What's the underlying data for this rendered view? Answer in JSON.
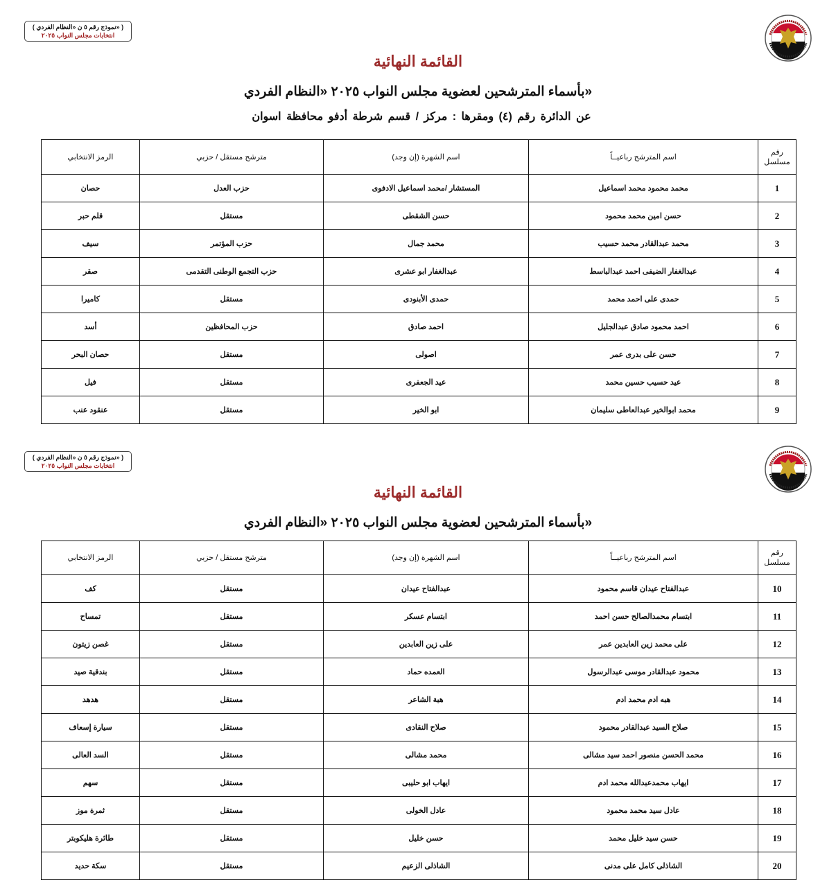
{
  "colors": {
    "title": "#9b2a2a",
    "badge_line2": "#a02020"
  },
  "logo": {
    "icon": "egypt-national-election-authority-seal",
    "text": "National Election Authority Egypt"
  },
  "badge": {
    "line1": "( نموذج رقم ٥ ن «النظام الفردي» )",
    "line2": "انتخابات مجلس النواب ٢٠٢٥"
  },
  "title": "القائمة النهائية",
  "subtitle": "بأسماء المترشحين لعضوية مجلس النواب ٢٠٢٥ «النظام الفردي»",
  "district_line": "عن الدائرة رقم (٤) ومقرها : مركز / قسم شرطة أدفو محافظة اسوان",
  "table": {
    "headers": {
      "serial": "رقم مسلسل",
      "name": "اسم المترشح رباعيــاً",
      "nickname": "اسم الشهرة (إن وجد)",
      "type": "مترشح مستقل / حزبي",
      "symbol": "الرمز الانتخابي"
    },
    "page1_rows": [
      [
        "1",
        "محمد محمود محمد اسماعيل",
        "المستشار /محمد اسماعيل الادفوى",
        "حزب العدل",
        "حصان"
      ],
      [
        "2",
        "حسن امين محمد محمود",
        "حسن الشقطى",
        "مستقل",
        "قلم حبر"
      ],
      [
        "3",
        "محمد عبدالقادر محمد حسيب",
        "محمد جمال",
        "حزب المؤتمر",
        "سيف"
      ],
      [
        "4",
        "عبدالغفار الضيفى احمد عبدالباسط",
        "عبدالغفار ابو عشرى",
        "حزب التجمع الوطنى التقدمى",
        "صقر"
      ],
      [
        "5",
        "حمدى على احمد محمد",
        "حمدى الأبنودى",
        "مستقل",
        "كاميرا"
      ],
      [
        "6",
        "احمد محمود صادق عبدالجليل",
        "احمد صادق",
        "حزب المحافظين",
        "أسد"
      ],
      [
        "7",
        "حسن على بدرى عمر",
        "اصولى",
        "مستقل",
        "حصان البحر"
      ],
      [
        "8",
        "عيد حسيب حسين محمد",
        "عيد الجعفرى",
        "مستقل",
        "فيل"
      ],
      [
        "9",
        "محمد ابوالخير عبدالعاطى سليمان",
        "ابو الخير",
        "مستقل",
        "عنقود عنب"
      ]
    ],
    "page2_rows": [
      [
        "10",
        "عبدالفتاح عيدان قاسم محمود",
        "عبدالفتاح عيدان",
        "مستقل",
        "كف"
      ],
      [
        "11",
        "ابتسام محمدالصالح حسن احمد",
        "ابتسام عسكر",
        "مستقل",
        "تمساح"
      ],
      [
        "12",
        "على محمد زين العابدين عمر",
        "على زين العابدين",
        "مستقل",
        "غصن زيتون"
      ],
      [
        "13",
        "محمود عبدالقادر موسى عبدالرسول",
        "العمده حماد",
        "مستقل",
        "بندقية صيد"
      ],
      [
        "14",
        "هبه ادم محمد ادم",
        "هبة الشاعر",
        "مستقل",
        "هدهد"
      ],
      [
        "15",
        "صلاح السيد عبدالقادر محمود",
        "صلاح النقادى",
        "مستقل",
        "سيارة إسعاف"
      ],
      [
        "16",
        "محمد الحسن منصور احمد سيد مشالى",
        "محمد مشالى",
        "مستقل",
        "السد العالى"
      ],
      [
        "17",
        "ايهاب محمدعبدالله محمد ادم",
        "ايهاب ابو حليبى",
        "مستقل",
        "سهم"
      ],
      [
        "18",
        "عادل سيد محمد محمود",
        "عادل الخولى",
        "مستقل",
        "ثمرة موز"
      ],
      [
        "19",
        "حسن سيد خليل محمد",
        "حسن خليل",
        "مستقل",
        "طائرة هليكوبتر"
      ],
      [
        "20",
        "الشاذلى كامل على مدنى",
        "الشاذلى الزعيم",
        "مستقل",
        "سكة حديد"
      ]
    ]
  }
}
